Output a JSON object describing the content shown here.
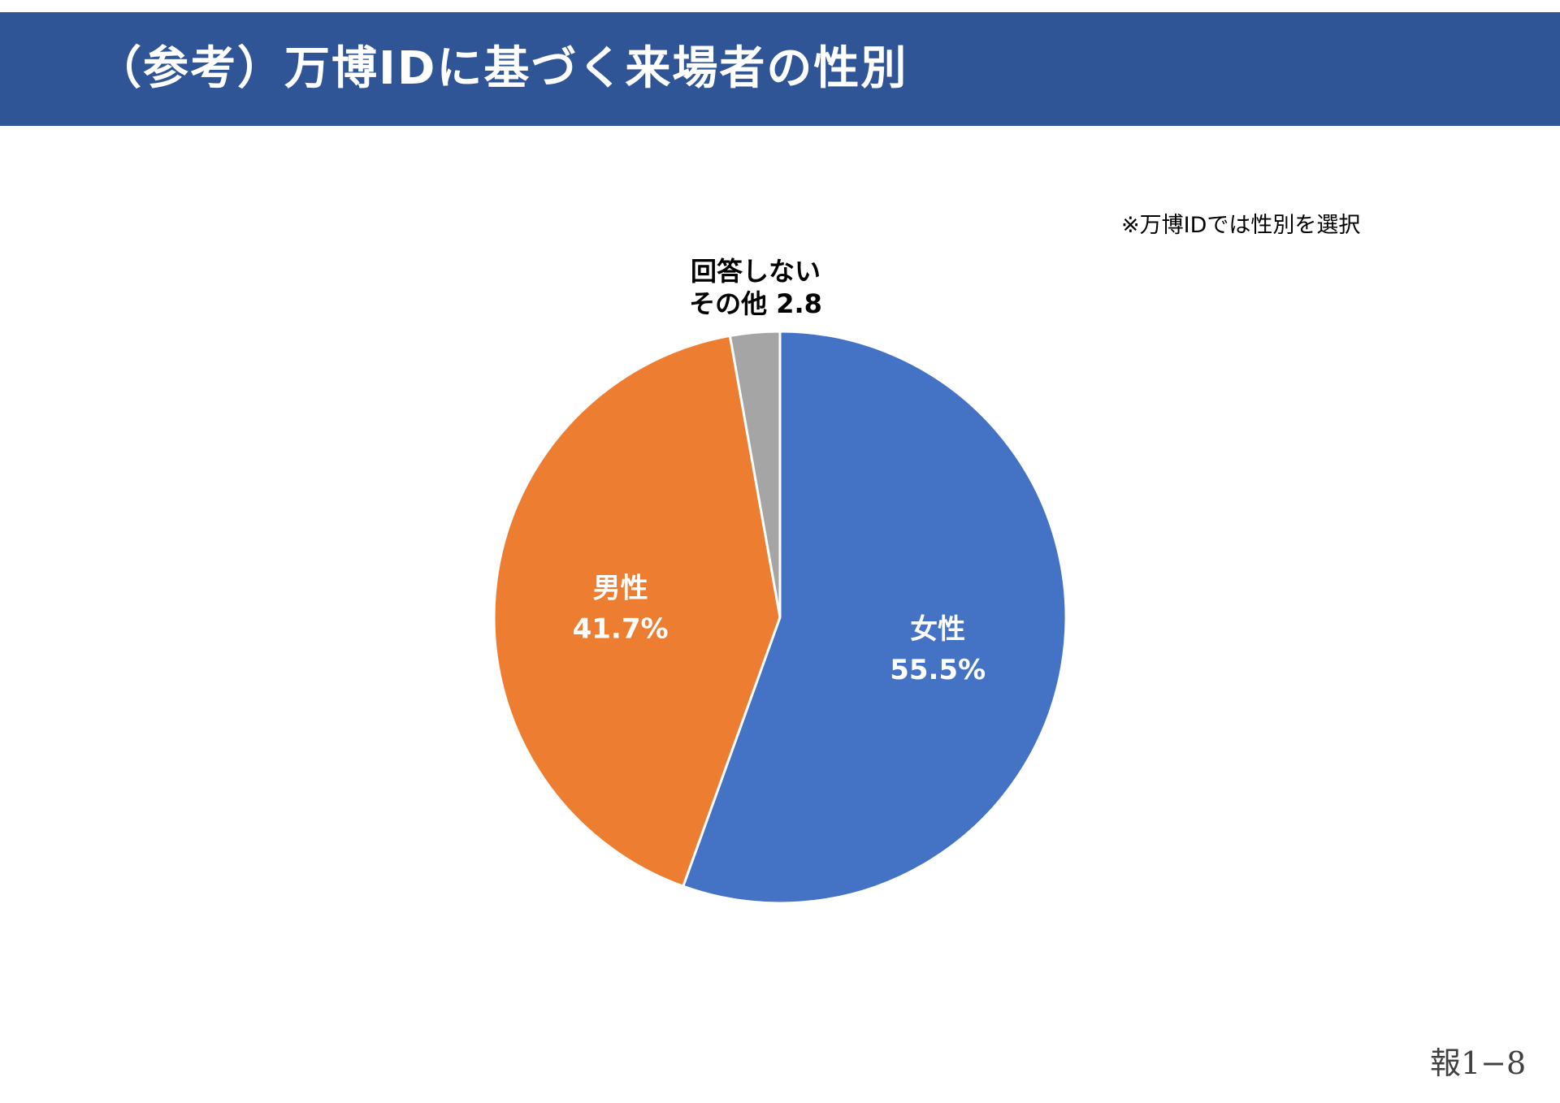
{
  "header": {
    "title": "（参考）万博IDに基づく来場者の性別"
  },
  "note": "※万博IDでは性別を選択",
  "page_number": "報1−8",
  "chart_data": {
    "type": "pie",
    "title": "",
    "start_angle_deg": 0,
    "direction": "clockwise",
    "slices": [
      {
        "name": "女性",
        "value": 55.5,
        "value_label": "55.5%",
        "color": "#4472c4",
        "label_color": "#ffffff",
        "label_inside": true
      },
      {
        "name": "男性",
        "value": 41.7,
        "value_label": "41.7%",
        "color": "#ed7d31",
        "label_color": "#ffffff",
        "label_inside": true
      },
      {
        "name": "回答しない",
        "name2": "その他",
        "value": 2.8,
        "value_label": "2.8",
        "color": "#a5a5a5",
        "label_color": "#000000",
        "label_inside": false
      }
    ],
    "extra_slice_color": "#ffc000"
  }
}
